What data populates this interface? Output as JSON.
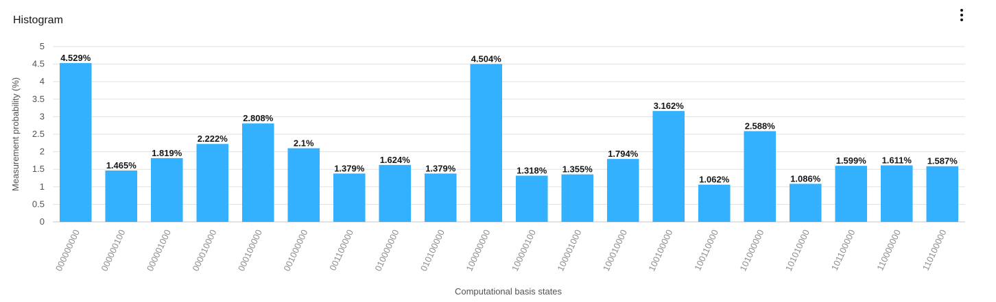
{
  "header": {
    "title": "Histogram",
    "menu_icon": "overflow-menu-vertical-icon"
  },
  "colors": {
    "bar": "#33b1ff",
    "grid": "#e0e0e0",
    "axis_text": "#525252",
    "label_text": "#161616"
  },
  "chart_data": {
    "type": "bar",
    "title": "Histogram",
    "xlabel": "Computational basis states",
    "ylabel": "Measurement probability (%)",
    "ylim": [
      0,
      5
    ],
    "yticks": [
      "0",
      "0.5",
      "1",
      "1.5",
      "2",
      "2.5",
      "3",
      "3.5",
      "4",
      "4.5",
      "5"
    ],
    "grid": true,
    "categories": [
      "000000000",
      "000000100",
      "000001000",
      "000010000",
      "000100000",
      "001000000",
      "001100000",
      "010000000",
      "010100000",
      "100000000",
      "100000100",
      "100001000",
      "100010000",
      "100100000",
      "100110000",
      "101000000",
      "101010000",
      "101100000",
      "110000000",
      "110100000"
    ],
    "values": [
      4.529,
      1.465,
      1.819,
      2.222,
      2.808,
      2.1,
      1.379,
      1.624,
      1.379,
      4.504,
      1.318,
      1.355,
      1.794,
      3.162,
      1.062,
      2.588,
      1.086,
      1.599,
      1.611,
      1.587
    ],
    "value_labels": [
      "4.529%",
      "1.465%",
      "1.819%",
      "2.222%",
      "2.808%",
      "2.1%",
      "1.379%",
      "1.624%",
      "1.379%",
      "4.504%",
      "1.318%",
      "1.355%",
      "1.794%",
      "3.162%",
      "1.062%",
      "2.588%",
      "1.086%",
      "1.599%",
      "1.611%",
      "1.587%"
    ]
  }
}
